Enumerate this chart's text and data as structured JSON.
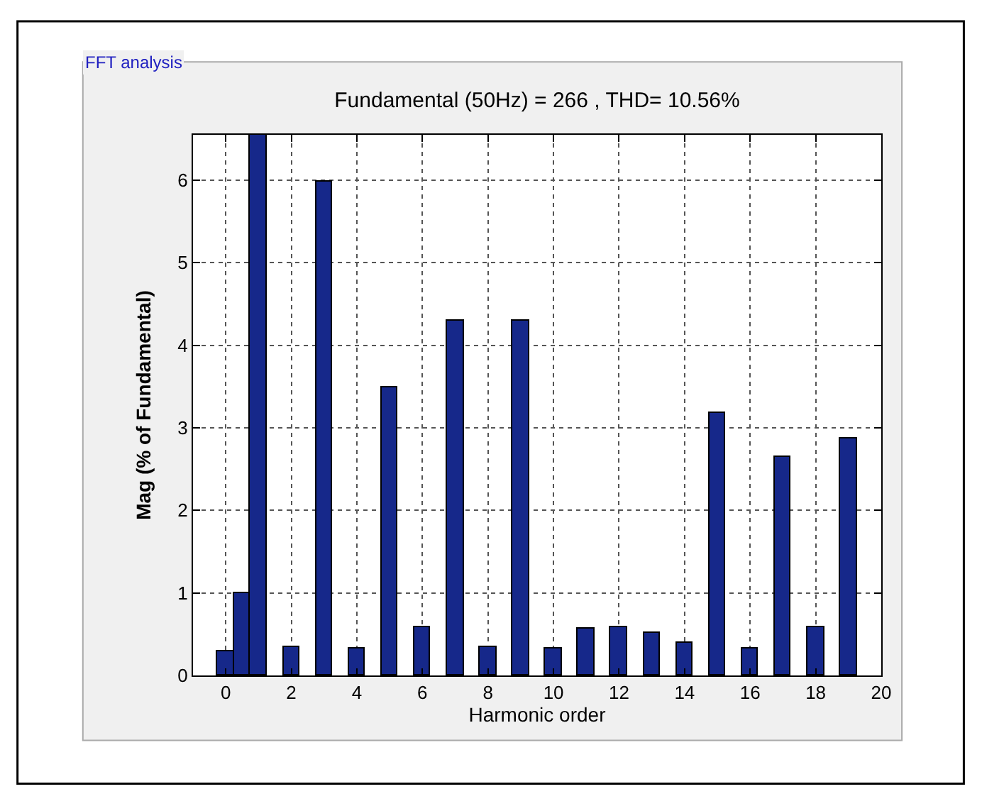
{
  "chart_data": {
    "type": "bar",
    "title": "Fundamental (50Hz) = 266 , THD= 10.56%",
    "xlabel": "Harmonic order",
    "ylabel": "Mag (% of Fundamental)",
    "annotations": [
      "FFT analysis"
    ],
    "x": [
      0,
      0.5,
      1,
      2,
      3,
      4,
      5,
      6,
      7,
      8,
      9,
      10,
      11,
      12,
      13,
      14,
      15,
      16,
      17,
      18,
      19
    ],
    "values": [
      0.3,
      1.0,
      6.55,
      0.35,
      5.98,
      0.33,
      3.49,
      0.58,
      4.3,
      0.35,
      4.3,
      0.33,
      0.56,
      0.59,
      0.52,
      0.39,
      3.18,
      0.32,
      2.65,
      0.59,
      2.87
    ],
    "color": "#16288a",
    "xlim": [
      -1,
      20
    ],
    "xticks": [
      0,
      2,
      4,
      6,
      8,
      10,
      12,
      14,
      16,
      18,
      20
    ],
    "ylim": [
      0,
      6.55
    ],
    "yticks": [
      0,
      1,
      2,
      3,
      4,
      5,
      6
    ],
    "grid": true,
    "line_style": "dotted"
  }
}
